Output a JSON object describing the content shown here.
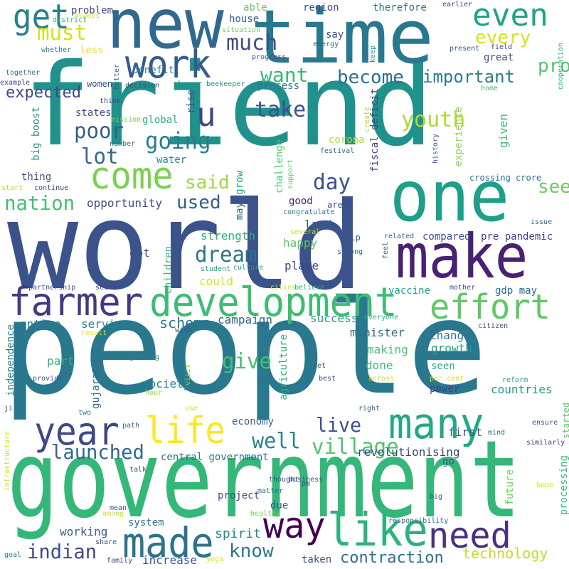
{
  "words": [
    {
      "text": "people",
      "color": "#29788e"
    },
    {
      "text": "world",
      "color": "#3b528b"
    },
    {
      "text": "government",
      "color": "#35b779"
    },
    {
      "text": "friend",
      "color": "#21918c"
    },
    {
      "text": "time",
      "color": "#2a788e"
    },
    {
      "text": "new",
      "color": "#31688e"
    },
    {
      "text": "one",
      "color": "#1f9e89"
    },
    {
      "text": "make",
      "color": "#482173"
    },
    {
      "text": "development",
      "color": "#3fbc73"
    },
    {
      "text": "farmer",
      "color": "#443983"
    },
    {
      "text": "like",
      "color": "#2db27d"
    },
    {
      "text": "need",
      "color": "#46327e"
    },
    {
      "text": "made",
      "color": "#2c728e"
    },
    {
      "text": "way",
      "color": "#440154"
    },
    {
      "text": "many",
      "color": "#22a884"
    },
    {
      "text": "effort",
      "color": "#5ec962"
    },
    {
      "text": "life",
      "color": "#fde725"
    },
    {
      "text": "year",
      "color": "#3e4989"
    },
    {
      "text": "come",
      "color": "#7ad151"
    },
    {
      "text": "work",
      "color": "#38598c"
    },
    {
      "text": "even",
      "color": "#20a486"
    },
    {
      "text": "get",
      "color": "#27808e"
    },
    {
      "text": "u",
      "color": "#414487"
    },
    {
      "text": "much",
      "color": "#3e4c8a"
    },
    {
      "text": "must",
      "color": "#d2e21b"
    },
    {
      "text": "want",
      "color": "#37b878"
    },
    {
      "text": "become",
      "color": "#2e6f8e"
    },
    {
      "text": "important",
      "color": "#2a7b8e"
    },
    {
      "text": "every",
      "color": "#d8e219"
    },
    {
      "text": "production",
      "color": "#54c568"
    },
    {
      "text": "see",
      "color": "#6ccd5a"
    },
    {
      "text": "youth",
      "color": "#addc30"
    },
    {
      "text": "take",
      "color": "#3b528b"
    },
    {
      "text": "going",
      "color": "#287d8e"
    },
    {
      "text": "poor",
      "color": "#355f8d"
    },
    {
      "text": "lot",
      "color": "#31688e"
    },
    {
      "text": "expected",
      "color": "#3f4889"
    },
    {
      "text": "said",
      "color": "#a0da39"
    },
    {
      "text": "nation",
      "color": "#42be71"
    },
    {
      "text": "used",
      "color": "#355e8d"
    },
    {
      "text": "day",
      "color": "#3d4e8a"
    },
    {
      "text": "dream",
      "color": "#2c718e"
    },
    {
      "text": "village",
      "color": "#50c46a"
    },
    {
      "text": "launched",
      "color": "#31678e"
    },
    {
      "text": "well",
      "color": "#25848e"
    },
    {
      "text": "live",
      "color": "#3a548c"
    },
    {
      "text": "give",
      "color": "#46c06f"
    },
    {
      "text": "know",
      "color": "#2a768e"
    },
    {
      "text": "indian",
      "color": "#3e4a89"
    },
    {
      "text": "spirit",
      "color": "#24878e"
    },
    {
      "text": "contraction",
      "color": "#2e6e8e"
    },
    {
      "text": "technology",
      "color": "#bddf26"
    },
    {
      "text": "scheme",
      "color": "#2b748e"
    },
    {
      "text": "campaign",
      "color": "#33638d"
    },
    {
      "text": "success",
      "color": "#1fa088"
    },
    {
      "text": "minister",
      "color": "#2f6b8e"
    },
    {
      "text": "change",
      "color": "#2a778e"
    },
    {
      "text": "growth",
      "color": "#20a386"
    },
    {
      "text": "revolutionising",
      "color": "#404688"
    },
    {
      "text": "first",
      "color": "#39568c"
    },
    {
      "text": "countries",
      "color": "#1e9b8a"
    },
    {
      "text": "power",
      "color": "#424086"
    },
    {
      "text": "gdp may",
      "color": "#31688e"
    },
    {
      "text": "vaccine",
      "color": "#1fa187"
    },
    {
      "text": "making",
      "color": "#4ac16d"
    },
    {
      "text": "done",
      "color": "#3aba76"
    },
    {
      "text": "seen",
      "color": "#29af7f"
    },
    {
      "text": "entire",
      "color": "#297a8e"
    },
    {
      "text": "service",
      "color": "#26828e"
    },
    {
      "text": "part",
      "color": "#31b57b"
    },
    {
      "text": "society",
      "color": "#24868e"
    },
    {
      "text": "economy",
      "color": "#32648e"
    },
    {
      "text": "central government",
      "color": "#2c718e"
    },
    {
      "text": "working",
      "color": "#34608d"
    },
    {
      "text": "system",
      "color": "#2d708e"
    },
    {
      "text": "increase",
      "color": "#39568c"
    },
    {
      "text": "taken",
      "color": "#3d4d8a"
    },
    {
      "text": "project",
      "color": "#3e4a89"
    },
    {
      "text": "due",
      "color": "#38588c"
    },
    {
      "text": "place",
      "color": "#3f4788"
    },
    {
      "text": "happy",
      "color": "#5ac864"
    },
    {
      "text": "land",
      "color": "#365c8d"
    },
    {
      "text": "good",
      "color": "#481769"
    },
    {
      "text": "strength",
      "color": "#2ab07f"
    },
    {
      "text": "opportunity",
      "color": "#3e4a89"
    },
    {
      "text": "got",
      "color": "#3b528b"
    },
    {
      "text": "could",
      "color": "#d5e21a"
    },
    {
      "text": "children",
      "color": "#35b779"
    },
    {
      "text": "compared",
      "color": "#3b528b"
    },
    {
      "text": "pre pandemic",
      "color": "#423f85"
    },
    {
      "text": "gujarat",
      "color": "#30698e"
    },
    {
      "text": "agriculture",
      "color": "#29af7f"
    },
    {
      "text": "independence",
      "color": "#25838e"
    },
    {
      "text": "problem",
      "color": "#3f4889"
    },
    {
      "text": "house",
      "color": "#37598c"
    },
    {
      "text": "able",
      "color": "#65cb5e"
    },
    {
      "text": "region",
      "color": "#3b518b"
    },
    {
      "text": "therefore",
      "color": "#2a768e"
    },
    {
      "text": "say",
      "color": "#3d4e8a"
    },
    {
      "text": "great",
      "color": "#39568c"
    },
    {
      "text": "less",
      "color": "#ecd83f"
    },
    {
      "text": "benefit",
      "color": "#2a788e"
    },
    {
      "text": "process",
      "color": "#2b748e"
    },
    {
      "text": "women",
      "color": "#3a538b"
    },
    {
      "text": "states",
      "color": "#3e4989"
    },
    {
      "text": "global",
      "color": "#2cb17e"
    },
    {
      "text": "rise",
      "color": "#3b518b"
    },
    {
      "text": "water",
      "color": "#24868e"
    },
    {
      "text": "thing",
      "color": "#38588c"
    },
    {
      "text": "big boost",
      "color": "#1f958b"
    },
    {
      "text": "corona",
      "color": "#addc30"
    },
    {
      "text": "fiscal deficit",
      "color": "#414487"
    },
    {
      "text": "challenge",
      "color": "#52c569"
    },
    {
      "text": "grow",
      "color": "#1e9b8a"
    },
    {
      "text": "may",
      "color": "#32648e"
    },
    {
      "text": "experience",
      "color": "#89d548"
    },
    {
      "text": "given",
      "color": "#3aba76"
    },
    {
      "text": "crossing crore",
      "color": "#2c718e"
    },
    {
      "text": "congratulate",
      "color": "#27808e"
    },
    {
      "text": "area",
      "color": "#3d4e8a"
    },
    {
      "text": "help",
      "color": "#355e8d"
    },
    {
      "text": "related",
      "color": "#39568c"
    },
    {
      "text": "strong",
      "color": "#33638d"
    },
    {
      "text": "student",
      "color": "#20a386"
    },
    {
      "text": "culture",
      "color": "#1f9e89"
    },
    {
      "text": "issue",
      "color": "#2d708e"
    },
    {
      "text": "cooperation",
      "color": "#26ad81"
    },
    {
      "text": "home",
      "color": "#3bbb75"
    },
    {
      "text": "history",
      "color": "#3b518b"
    },
    {
      "text": "festival",
      "color": "#30698e"
    },
    {
      "text": "farmer beekeeper",
      "color": "#21918c"
    },
    {
      "text": "decision",
      "color": "#3e4989"
    },
    {
      "text": "think",
      "color": "#3f4788"
    },
    {
      "text": "mission",
      "color": "#7ad151"
    },
    {
      "text": "number",
      "color": "#2e6f8e"
    },
    {
      "text": "create",
      "color": "#9fda3a"
    },
    {
      "text": "present",
      "color": "#38598c"
    },
    {
      "text": "field",
      "color": "#404688"
    },
    {
      "text": "earlier",
      "color": "#414487"
    },
    {
      "text": "keep",
      "color": "#1f9a8a"
    },
    {
      "text": "energy",
      "color": "#31688e"
    },
    {
      "text": "progress",
      "color": "#3a548c"
    },
    {
      "text": "situation",
      "color": "#6ece58"
    },
    {
      "text": "better",
      "color": "#33628d"
    },
    {
      "text": "district",
      "color": "#3aba76"
    },
    {
      "text": "always",
      "color": "#dde318"
    },
    {
      "text": "whether",
      "color": "#26828e"
    },
    {
      "text": "together",
      "color": "#2e6e8e"
    },
    {
      "text": "example",
      "color": "#3b518b"
    },
    {
      "text": "start",
      "color": "#c2df23"
    },
    {
      "text": "continue",
      "color": "#3f4889"
    },
    {
      "text": "support",
      "color": "#5ec962"
    },
    {
      "text": "several",
      "color": "#cae11f"
    },
    {
      "text": "feel",
      "color": "#375a8c"
    },
    {
      "text": "partnership",
      "color": "#3b528b"
    },
    {
      "text": "sector",
      "color": "#3f4889"
    },
    {
      "text": "cities",
      "color": "#d8e219"
    },
    {
      "text": "believe",
      "color": "#2cb17e"
    },
    {
      "text": "mother",
      "color": "#3b518b"
    },
    {
      "text": "everyone",
      "color": "#29af7f"
    },
    {
      "text": "citizen",
      "color": "#3b528b"
    },
    {
      "text": "wish",
      "color": "#3e4a89"
    },
    {
      "text": "result",
      "color": "#dde318"
    },
    {
      "text": "getting",
      "color": "#26828e"
    },
    {
      "text": "visit",
      "color": "#7fd34e"
    },
    {
      "text": "provide",
      "color": "#375b8d"
    },
    {
      "text": "hour",
      "color": "#9bd93c"
    },
    {
      "text": "set",
      "color": "#3d4e8a"
    },
    {
      "text": "best",
      "color": "#3b528b"
    },
    {
      "text": "across",
      "color": "#c8e020"
    },
    {
      "text": "bring",
      "color": "#2a788e"
    },
    {
      "text": "per cent",
      "color": "#d5e21a"
    },
    {
      "text": "reform",
      "color": "#1e9c89"
    },
    {
      "text": "ji",
      "color": "#3b528b"
    },
    {
      "text": "two",
      "color": "#2e6e8e"
    },
    {
      "text": "use",
      "color": "#d2e21b"
    },
    {
      "text": "right",
      "color": "#31688e"
    },
    {
      "text": "ensure",
      "color": "#3a548c"
    },
    {
      "text": "started",
      "color": "#5ec962"
    },
    {
      "text": "path",
      "color": "#2c718e"
    },
    {
      "text": "mind",
      "color": "#2a788e"
    },
    {
      "text": "similarly",
      "color": "#3e4989"
    },
    {
      "text": "infrastructure",
      "color": "#cde11d"
    },
    {
      "text": "talk",
      "color": "#3b528b"
    },
    {
      "text": "business",
      "color": "#3f4788"
    },
    {
      "text": "go",
      "color": "#38588c"
    },
    {
      "text": "thought",
      "color": "#38588c"
    },
    {
      "text": "pm",
      "color": "#3b528b"
    },
    {
      "text": "matter",
      "color": "#2c718e"
    },
    {
      "text": "hope",
      "color": "#dde318"
    },
    {
      "text": "big",
      "color": "#3b518b"
    },
    {
      "text": "mean",
      "color": "#3b518b"
    },
    {
      "text": "among",
      "color": "#c8e020"
    },
    {
      "text": "healthy",
      "color": "#7ad151"
    },
    {
      "text": "responsibility",
      "color": "#2e6e8e"
    },
    {
      "text": "future",
      "color": "#73d056"
    },
    {
      "text": "processing",
      "color": "#3aba76"
    },
    {
      "text": "share",
      "color": "#3b518b"
    },
    {
      "text": "goal",
      "color": "#2a788e"
    },
    {
      "text": "family",
      "color": "#3e4989"
    },
    {
      "text": "yoga",
      "color": "#d5e21a"
    }
  ]
}
